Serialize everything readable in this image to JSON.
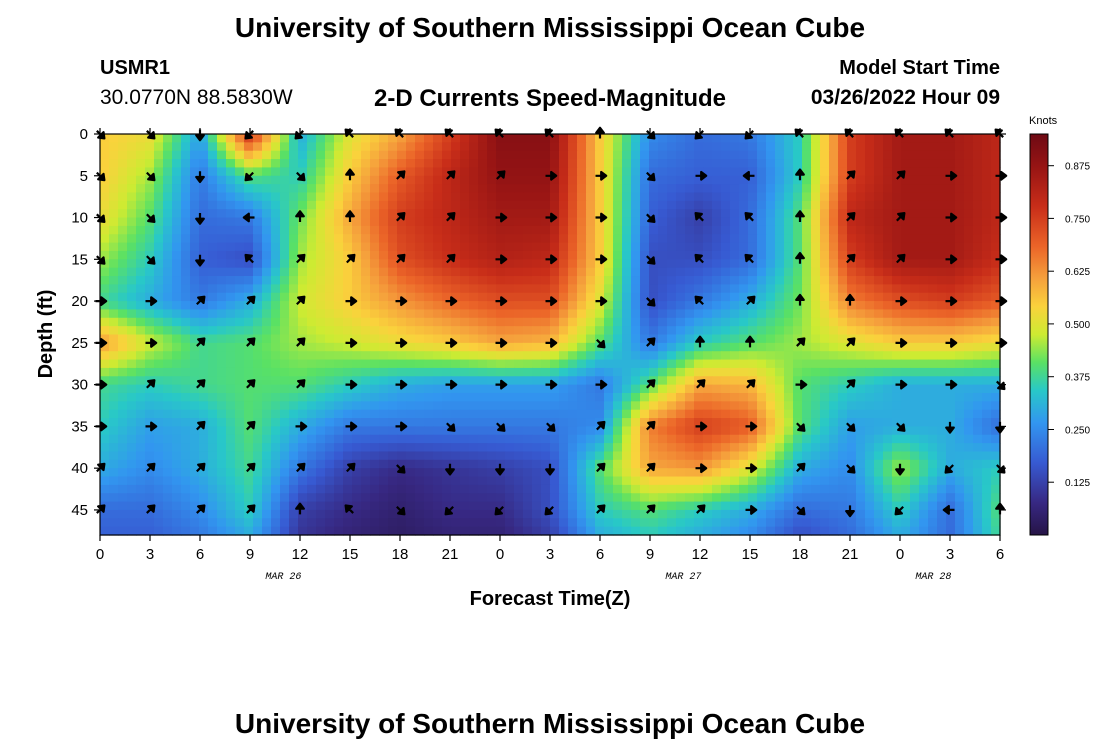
{
  "page": {
    "title": "University of Southern Mississippi Ocean Cube",
    "footer_title": "University of Southern Mississippi Ocean Cube",
    "station_id": "USMR1",
    "station_coords": "30.0770N  88.5830W",
    "subtitle": "2-D Currents Speed-Magnitude",
    "model_start_label": "Model Start Time",
    "model_start_value": "03/26/2022 Hour 09"
  },
  "chart_data": {
    "type": "heatmap",
    "title": "2-D Currents Speed-Magnitude",
    "xlabel": "Forecast Time(Z)",
    "ylabel": "Depth (ft)",
    "x_tick_labels": [
      "0",
      "3",
      "6",
      "9",
      "12",
      "15",
      "18",
      "21",
      "0",
      "3",
      "6",
      "9",
      "12",
      "15",
      "18",
      "21",
      "0",
      "3",
      "6"
    ],
    "x_range_hours": [
      0,
      54
    ],
    "date_labels": [
      {
        "text": "MAR 26",
        "hour": 11
      },
      {
        "text": "MAR 27",
        "hour": 35
      },
      {
        "text": "MAR 28",
        "hour": 50
      }
    ],
    "y_ticks": [
      0,
      5,
      10,
      15,
      20,
      25,
      30,
      35,
      40,
      45
    ],
    "y_range_ft": [
      0,
      48
    ],
    "colorbar": {
      "label": "Knots",
      "ticks": [
        "0.875",
        "0.750",
        "0.625",
        "0.500",
        "0.375",
        "0.250",
        "0.125"
      ],
      "tick_values": [
        0.875,
        0.75,
        0.625,
        0.5,
        0.375,
        0.25,
        0.125
      ],
      "range": [
        0,
        0.95
      ]
    },
    "speed_control_points": [
      {
        "depth": 0,
        "hours": [
          0,
          3,
          6,
          9,
          12,
          15,
          18,
          21,
          24,
          27,
          30,
          33,
          36,
          39,
          42,
          45,
          48,
          51,
          54
        ],
        "values": [
          0.55,
          0.52,
          0.28,
          0.78,
          0.3,
          0.5,
          0.6,
          0.75,
          0.9,
          0.9,
          0.55,
          0.25,
          0.2,
          0.22,
          0.35,
          0.75,
          0.85,
          0.85,
          0.8
        ]
      },
      {
        "depth": 5,
        "hours": [
          0,
          3,
          6,
          9,
          12,
          15,
          18,
          21,
          24,
          27,
          30,
          33,
          36,
          39,
          42,
          45,
          48,
          51,
          54
        ],
        "values": [
          0.55,
          0.45,
          0.22,
          0.4,
          0.35,
          0.55,
          0.7,
          0.8,
          0.88,
          0.88,
          0.55,
          0.2,
          0.18,
          0.18,
          0.35,
          0.75,
          0.85,
          0.85,
          0.8
        ]
      },
      {
        "depth": 10,
        "hours": [
          0,
          3,
          6,
          9,
          12,
          15,
          18,
          21,
          24,
          27,
          30,
          33,
          36,
          39,
          42,
          45,
          48,
          51,
          54
        ],
        "values": [
          0.52,
          0.4,
          0.2,
          0.22,
          0.42,
          0.6,
          0.75,
          0.8,
          0.85,
          0.85,
          0.55,
          0.18,
          0.12,
          0.2,
          0.4,
          0.8,
          0.85,
          0.85,
          0.8
        ]
      },
      {
        "depth": 15,
        "hours": [
          0,
          3,
          6,
          9,
          12,
          15,
          18,
          21,
          24,
          27,
          30,
          33,
          36,
          39,
          42,
          45,
          48,
          51,
          54
        ],
        "values": [
          0.45,
          0.35,
          0.18,
          0.15,
          0.45,
          0.55,
          0.72,
          0.78,
          0.82,
          0.8,
          0.55,
          0.15,
          0.15,
          0.2,
          0.4,
          0.75,
          0.85,
          0.85,
          0.78
        ]
      },
      {
        "depth": 20,
        "hours": [
          0,
          3,
          6,
          9,
          12,
          15,
          18,
          21,
          24,
          27,
          30,
          33,
          36,
          39,
          42,
          45,
          48,
          51,
          54
        ],
        "values": [
          0.38,
          0.3,
          0.22,
          0.3,
          0.48,
          0.55,
          0.62,
          0.68,
          0.72,
          0.72,
          0.5,
          0.15,
          0.22,
          0.3,
          0.42,
          0.65,
          0.72,
          0.75,
          0.7
        ]
      },
      {
        "depth": 25,
        "hours": [
          0,
          3,
          6,
          9,
          12,
          15,
          18,
          21,
          24,
          27,
          30,
          33,
          36,
          39,
          42,
          45,
          48,
          51,
          54
        ],
        "values": [
          0.62,
          0.48,
          0.38,
          0.4,
          0.45,
          0.48,
          0.52,
          0.55,
          0.6,
          0.58,
          0.4,
          0.22,
          0.35,
          0.4,
          0.45,
          0.5,
          0.55,
          0.55,
          0.52
        ]
      },
      {
        "depth": 30,
        "hours": [
          0,
          3,
          6,
          9,
          12,
          15,
          18,
          21,
          24,
          27,
          30,
          33,
          36,
          39,
          42,
          45,
          48,
          51,
          54
        ],
        "values": [
          0.38,
          0.35,
          0.38,
          0.4,
          0.4,
          0.35,
          0.3,
          0.28,
          0.28,
          0.28,
          0.22,
          0.4,
          0.6,
          0.58,
          0.4,
          0.35,
          0.3,
          0.3,
          0.3
        ]
      },
      {
        "depth": 35,
        "hours": [
          0,
          3,
          6,
          9,
          12,
          15,
          18,
          21,
          24,
          27,
          30,
          33,
          36,
          39,
          42,
          45,
          48,
          51,
          54
        ],
        "values": [
          0.35,
          0.28,
          0.3,
          0.4,
          0.3,
          0.22,
          0.22,
          0.22,
          0.22,
          0.22,
          0.25,
          0.65,
          0.75,
          0.7,
          0.4,
          0.28,
          0.3,
          0.3,
          0.2
        ]
      },
      {
        "depth": 40,
        "hours": [
          0,
          3,
          6,
          9,
          12,
          15,
          18,
          21,
          24,
          27,
          30,
          33,
          36,
          39,
          42,
          45,
          48,
          51,
          54
        ],
        "values": [
          0.3,
          0.25,
          0.3,
          0.38,
          0.22,
          0.12,
          0.08,
          0.1,
          0.12,
          0.15,
          0.4,
          0.6,
          0.62,
          0.5,
          0.3,
          0.25,
          0.45,
          0.3,
          0.35
        ]
      },
      {
        "depth": 45,
        "hours": [
          0,
          3,
          6,
          9,
          12,
          15,
          18,
          21,
          24,
          27,
          30,
          33,
          36,
          39,
          42,
          45,
          48,
          51,
          54
        ],
        "values": [
          0.2,
          0.2,
          0.25,
          0.35,
          0.12,
          0.08,
          0.05,
          0.08,
          0.08,
          0.15,
          0.35,
          0.4,
          0.35,
          0.3,
          0.2,
          0.22,
          0.35,
          0.2,
          0.4
        ]
      },
      {
        "depth": 48,
        "hours": [
          0,
          3,
          6,
          9,
          12,
          15,
          18,
          21,
          24,
          27,
          30,
          33,
          36,
          39,
          42,
          45,
          48,
          51,
          54
        ],
        "values": [
          0.18,
          0.18,
          0.22,
          0.3,
          0.1,
          0.06,
          0.04,
          0.06,
          0.06,
          0.12,
          0.3,
          0.35,
          0.3,
          0.25,
          0.15,
          0.2,
          0.3,
          0.2,
          0.38
        ]
      }
    ],
    "arrow_depths": [
      0,
      5,
      10,
      15,
      20,
      25,
      30,
      35,
      40,
      45
    ],
    "arrow_hours": [
      0,
      3,
      6,
      9,
      12,
      15,
      18,
      21,
      24,
      27,
      30,
      33,
      36,
      39,
      42,
      45,
      48,
      51,
      54
    ],
    "arrow_directions_deg": [
      [
        135,
        135,
        180,
        225,
        225,
        315,
        315,
        315,
        315,
        315,
        0,
        135,
        225,
        225,
        315,
        315,
        315,
        315,
        315
      ],
      [
        135,
        135,
        180,
        225,
        135,
        0,
        45,
        45,
        45,
        90,
        90,
        135,
        90,
        270,
        0,
        45,
        45,
        90,
        90
      ],
      [
        135,
        135,
        180,
        270,
        0,
        0,
        45,
        45,
        90,
        90,
        90,
        135,
        315,
        315,
        0,
        45,
        45,
        90,
        90
      ],
      [
        135,
        135,
        180,
        315,
        45,
        45,
        45,
        45,
        90,
        90,
        90,
        135,
        315,
        315,
        0,
        45,
        45,
        90,
        90
      ],
      [
        90,
        90,
        45,
        45,
        45,
        90,
        90,
        90,
        90,
        90,
        90,
        135,
        315,
        45,
        0,
        0,
        90,
        90,
        90
      ],
      [
        90,
        90,
        45,
        45,
        45,
        90,
        90,
        90,
        90,
        90,
        135,
        45,
        0,
        0,
        45,
        45,
        90,
        90,
        90
      ],
      [
        90,
        45,
        45,
        45,
        45,
        90,
        90,
        90,
        90,
        90,
        90,
        45,
        45,
        45,
        90,
        45,
        90,
        90,
        135
      ],
      [
        90,
        90,
        45,
        45,
        90,
        90,
        90,
        135,
        135,
        135,
        45,
        45,
        90,
        90,
        135,
        135,
        135,
        180,
        180
      ],
      [
        45,
        45,
        45,
        45,
        45,
        45,
        135,
        180,
        180,
        180,
        45,
        45,
        90,
        90,
        45,
        135,
        180,
        225,
        135
      ],
      [
        45,
        45,
        45,
        45,
        0,
        315,
        135,
        225,
        225,
        225,
        45,
        45,
        45,
        90,
        135,
        180,
        225,
        270,
        0
      ]
    ]
  }
}
